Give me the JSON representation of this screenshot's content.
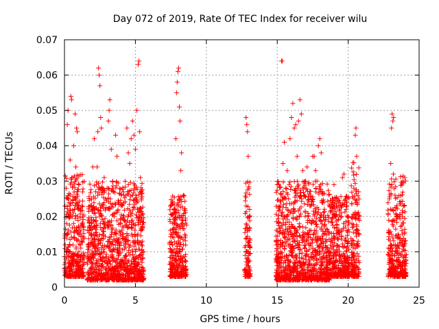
{
  "chart_data": {
    "type": "scatter",
    "title": "Day 072 of 2019, Rate Of TEC Index for receiver wilu",
    "xlabel": "GPS time / hours",
    "ylabel": "ROTI / TECUs",
    "xlim": [
      0,
      25
    ],
    "ylim": [
      0,
      0.07
    ],
    "grid": true,
    "marker": "+",
    "color": "#ff0000",
    "x_ticks": [
      0,
      5,
      10,
      15,
      20,
      25
    ],
    "x_tick_labels": [
      "0",
      "5",
      "10",
      "15",
      "20",
      "25"
    ],
    "y_ticks": [
      0,
      0.01,
      0.02,
      0.03,
      0.04,
      0.05,
      0.06,
      0.07
    ],
    "y_tick_labels": [
      "0",
      "0.01",
      "0.02",
      "0.03",
      "0.04",
      "0.05",
      "0.06",
      "0.07"
    ],
    "series": [
      {
        "name": "ROTI",
        "points": [
          [
            0.05,
            0.012
          ],
          [
            0.1,
            0.008
          ],
          [
            0.15,
            0.018
          ],
          [
            0.2,
            0.046
          ],
          [
            0.25,
            0.05
          ],
          [
            0.3,
            0.025
          ],
          [
            0.35,
            0.007
          ],
          [
            0.4,
            0.036
          ],
          [
            0.45,
            0.054
          ],
          [
            0.5,
            0.053
          ],
          [
            0.55,
            0.02
          ],
          [
            0.6,
            0.031
          ],
          [
            0.65,
            0.04
          ],
          [
            0.7,
            0.014
          ],
          [
            0.75,
            0.049
          ],
          [
            0.8,
            0.034
          ],
          [
            0.85,
            0.045
          ],
          [
            0.9,
            0.044
          ],
          [
            0.95,
            0.009
          ],
          [
            1.0,
            0.006
          ],
          [
            1.2,
            0.013
          ],
          [
            1.3,
            0.008
          ],
          [
            0.3,
            0.01
          ],
          [
            0.5,
            0.005
          ],
          [
            0.7,
            0.022
          ],
          [
            0.9,
            0.027
          ],
          [
            0.2,
            0.015
          ],
          [
            0.6,
            0.012
          ],
          [
            1.8,
            0.012
          ],
          [
            1.9,
            0.018
          ],
          [
            2.0,
            0.034
          ],
          [
            2.1,
            0.042
          ],
          [
            2.2,
            0.027
          ],
          [
            2.3,
            0.034
          ],
          [
            2.35,
            0.044
          ],
          [
            2.4,
            0.062
          ],
          [
            2.45,
            0.06
          ],
          [
            2.5,
            0.057
          ],
          [
            2.55,
            0.048
          ],
          [
            2.6,
            0.045
          ],
          [
            2.7,
            0.015
          ],
          [
            2.8,
            0.031
          ],
          [
            2.9,
            0.025
          ],
          [
            3.0,
            0.028
          ],
          [
            3.1,
            0.047
          ],
          [
            3.15,
            0.05
          ],
          [
            3.2,
            0.053
          ],
          [
            3.3,
            0.039
          ],
          [
            3.4,
            0.03
          ],
          [
            3.5,
            0.02
          ],
          [
            3.6,
            0.043
          ],
          [
            3.7,
            0.037
          ],
          [
            3.8,
            0.013
          ],
          [
            3.9,
            0.011
          ],
          [
            4.0,
            0.026
          ],
          [
            4.1,
            0.015
          ],
          [
            4.2,
            0.019
          ],
          [
            4.3,
            0.013
          ],
          [
            4.4,
            0.045
          ],
          [
            4.5,
            0.038
          ],
          [
            4.6,
            0.035
          ],
          [
            4.7,
            0.042
          ],
          [
            4.8,
            0.047
          ],
          [
            4.9,
            0.043
          ],
          [
            5.0,
            0.039
          ],
          [
            5.1,
            0.05
          ],
          [
            5.2,
            0.063
          ],
          [
            5.25,
            0.064
          ],
          [
            5.3,
            0.044
          ],
          [
            5.35,
            0.031
          ],
          [
            5.4,
            0.027
          ],
          [
            5.5,
            0.013
          ],
          [
            2.0,
            0.006
          ],
          [
            2.5,
            0.004
          ],
          [
            3.0,
            0.007
          ],
          [
            3.5,
            0.005
          ],
          [
            4.0,
            0.006
          ],
          [
            4.5,
            0.004
          ],
          [
            5.0,
            0.006
          ],
          [
            2.2,
            0.011
          ],
          [
            2.8,
            0.01
          ],
          [
            3.3,
            0.012
          ],
          [
            3.8,
            0.009
          ],
          [
            4.3,
            0.008
          ],
          [
            4.8,
            0.01
          ],
          [
            5.3,
            0.009
          ],
          [
            7.5,
            0.007
          ],
          [
            7.6,
            0.012
          ],
          [
            7.7,
            0.009
          ],
          [
            7.8,
            0.022
          ],
          [
            7.85,
            0.042
          ],
          [
            7.9,
            0.055
          ],
          [
            7.95,
            0.058
          ],
          [
            8.0,
            0.061
          ],
          [
            8.05,
            0.062
          ],
          [
            8.1,
            0.051
          ],
          [
            8.15,
            0.047
          ],
          [
            8.2,
            0.033
          ],
          [
            8.25,
            0.038
          ],
          [
            8.3,
            0.019
          ],
          [
            8.4,
            0.026
          ],
          [
            8.5,
            0.014
          ],
          [
            7.8,
            0.005
          ],
          [
            8.2,
            0.008
          ],
          [
            8.4,
            0.006
          ],
          [
            7.6,
            0.01
          ],
          [
            12.8,
            0.048
          ],
          [
            12.85,
            0.046
          ],
          [
            12.9,
            0.044
          ],
          [
            12.95,
            0.037
          ],
          [
            13.0,
            0.028
          ],
          [
            13.05,
            0.022
          ],
          [
            12.9,
            0.016
          ],
          [
            13.0,
            0.012
          ],
          [
            12.85,
            0.008
          ],
          [
            12.95,
            0.006
          ],
          [
            13.0,
            0.004
          ],
          [
            12.9,
            0.01
          ],
          [
            15.0,
            0.012
          ],
          [
            15.1,
            0.018
          ],
          [
            15.2,
            0.023
          ],
          [
            15.3,
            0.064
          ],
          [
            15.35,
            0.064
          ],
          [
            15.4,
            0.035
          ],
          [
            15.5,
            0.041
          ],
          [
            15.6,
            0.028
          ],
          [
            15.7,
            0.033
          ],
          [
            15.8,
            0.025
          ],
          [
            15.9,
            0.042
          ],
          [
            16.0,
            0.048
          ],
          [
            16.1,
            0.052
          ],
          [
            16.2,
            0.045
          ],
          [
            16.3,
            0.046
          ],
          [
            16.4,
            0.037
          ],
          [
            16.5,
            0.047
          ],
          [
            16.6,
            0.053
          ],
          [
            16.7,
            0.049
          ],
          [
            16.8,
            0.033
          ],
          [
            16.9,
            0.026
          ],
          [
            17.0,
            0.03
          ],
          [
            17.1,
            0.034
          ],
          [
            17.2,
            0.02
          ],
          [
            17.3,
            0.023
          ],
          [
            17.4,
            0.025
          ],
          [
            17.5,
            0.037
          ],
          [
            17.6,
            0.037
          ],
          [
            17.7,
            0.033
          ],
          [
            17.8,
            0.03
          ],
          [
            17.9,
            0.04
          ],
          [
            18.0,
            0.042
          ],
          [
            18.1,
            0.038
          ],
          [
            18.2,
            0.024
          ],
          [
            18.3,
            0.019
          ],
          [
            18.5,
            0.013
          ],
          [
            15.2,
            0.006
          ],
          [
            15.7,
            0.005
          ],
          [
            16.2,
            0.007
          ],
          [
            16.7,
            0.004
          ],
          [
            17.2,
            0.006
          ],
          [
            17.7,
            0.005
          ],
          [
            18.2,
            0.007
          ],
          [
            15.5,
            0.011
          ],
          [
            16.0,
            0.01
          ],
          [
            16.5,
            0.012
          ],
          [
            17.0,
            0.009
          ],
          [
            17.5,
            0.011
          ],
          [
            18.0,
            0.01
          ],
          [
            18.8,
            0.011
          ],
          [
            18.9,
            0.024
          ],
          [
            19.0,
            0.029
          ],
          [
            19.1,
            0.02
          ],
          [
            19.2,
            0.017
          ],
          [
            19.3,
            0.019
          ],
          [
            19.4,
            0.024
          ],
          [
            19.5,
            0.021
          ],
          [
            19.6,
            0.031
          ],
          [
            19.7,
            0.032
          ],
          [
            19.8,
            0.025
          ],
          [
            19.9,
            0.016
          ],
          [
            20.0,
            0.013
          ],
          [
            19.0,
            0.006
          ],
          [
            19.5,
            0.005
          ],
          [
            19.8,
            0.008
          ],
          [
            20.3,
            0.02
          ],
          [
            20.4,
            0.028
          ],
          [
            20.5,
            0.043
          ],
          [
            20.55,
            0.045
          ],
          [
            20.6,
            0.037
          ],
          [
            20.65,
            0.024
          ],
          [
            20.7,
            0.013
          ],
          [
            20.4,
            0.006
          ],
          [
            20.6,
            0.008
          ],
          [
            20.5,
            0.011
          ],
          [
            22.9,
            0.025
          ],
          [
            23.0,
            0.035
          ],
          [
            23.05,
            0.045
          ],
          [
            23.1,
            0.049
          ],
          [
            23.15,
            0.047
          ],
          [
            23.2,
            0.048
          ],
          [
            23.3,
            0.026
          ],
          [
            23.4,
            0.02
          ],
          [
            23.5,
            0.014
          ],
          [
            23.6,
            0.011
          ],
          [
            23.8,
            0.01
          ],
          [
            24.0,
            0.009
          ],
          [
            23.2,
            0.006
          ],
          [
            23.5,
            0.007
          ],
          [
            23.8,
            0.006
          ],
          [
            23.0,
            0.012
          ]
        ]
      }
    ],
    "dense_bands": [
      {
        "x_start": 0.0,
        "x_end": 1.4,
        "y_low": 0.003,
        "y_high": 0.032
      },
      {
        "x_start": 1.6,
        "x_end": 5.6,
        "y_low": 0.002,
        "y_high": 0.03
      },
      {
        "x_start": 7.4,
        "x_end": 8.6,
        "y_low": 0.003,
        "y_high": 0.026
      },
      {
        "x_start": 12.7,
        "x_end": 13.1,
        "y_low": 0.003,
        "y_high": 0.03
      },
      {
        "x_start": 14.9,
        "x_end": 18.7,
        "y_low": 0.002,
        "y_high": 0.03
      },
      {
        "x_start": 18.7,
        "x_end": 20.1,
        "y_low": 0.003,
        "y_high": 0.026
      },
      {
        "x_start": 20.2,
        "x_end": 20.8,
        "y_low": 0.003,
        "y_high": 0.036
      },
      {
        "x_start": 22.8,
        "x_end": 24.1,
        "y_low": 0.003,
        "y_high": 0.032
      }
    ]
  }
}
